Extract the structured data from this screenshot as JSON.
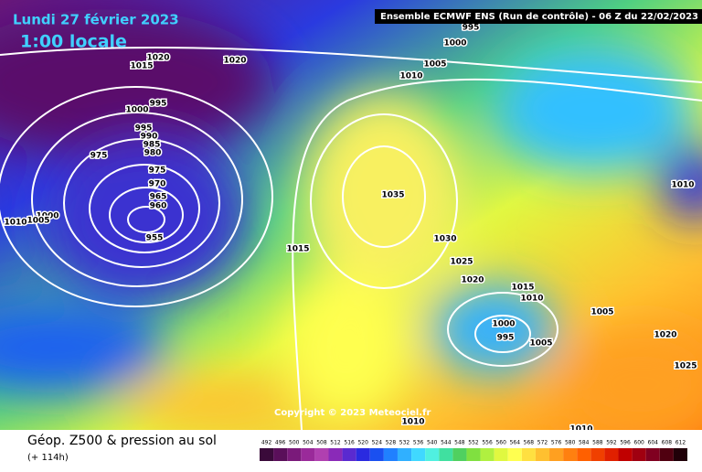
{
  "header": {
    "date": "Lundi 27 février 2023",
    "local_time": "1:00 locale",
    "run": "Ensemble ECMWF ENS  (Run de contrôle)  -  06 Z du 22/02/2023",
    "copyright": "Copyright © 2023 Meteociel.fr"
  },
  "footer": {
    "title": "Géop. Z500 & pression au sol",
    "lead": "(+ 114h)"
  },
  "isobar_labels": [
    995,
    1020,
    1015,
    1020,
    1000,
    1005,
    1010,
    995,
    1000,
    995,
    990,
    985,
    980,
    975,
    975,
    970,
    965,
    960,
    955,
    1000,
    1005,
    1010,
    1035,
    1015,
    1030,
    1025,
    1020,
    1015,
    1010,
    1005,
    1000,
    995,
    1005,
    1010,
    1020,
    1025,
    1010,
    1010
  ],
  "colorbar": {
    "values": [
      492,
      496,
      500,
      504,
      508,
      512,
      516,
      520,
      524,
      528,
      532,
      536,
      540,
      544,
      548,
      552,
      556,
      560,
      564,
      568,
      572,
      576,
      580,
      584,
      588,
      592,
      596,
      600,
      604,
      608,
      612
    ],
    "colors": [
      "#3a0a3a",
      "#5a0f5a",
      "#7a1a7a",
      "#9a2a9a",
      "#b040b0",
      "#8a2ab8",
      "#5a2ad0",
      "#2a2ae0",
      "#1a50f0",
      "#2080ff",
      "#30b0ff",
      "#40d8ff",
      "#50f0e0",
      "#40e0a0",
      "#50d060",
      "#80e040",
      "#b0f040",
      "#e0f840",
      "#ffff50",
      "#ffe040",
      "#ffc030",
      "#ffa020",
      "#ff8010",
      "#ff6000",
      "#f04000",
      "#e02000",
      "#c00000",
      "#a00010",
      "#800020",
      "#500010",
      "#200008"
    ]
  }
}
